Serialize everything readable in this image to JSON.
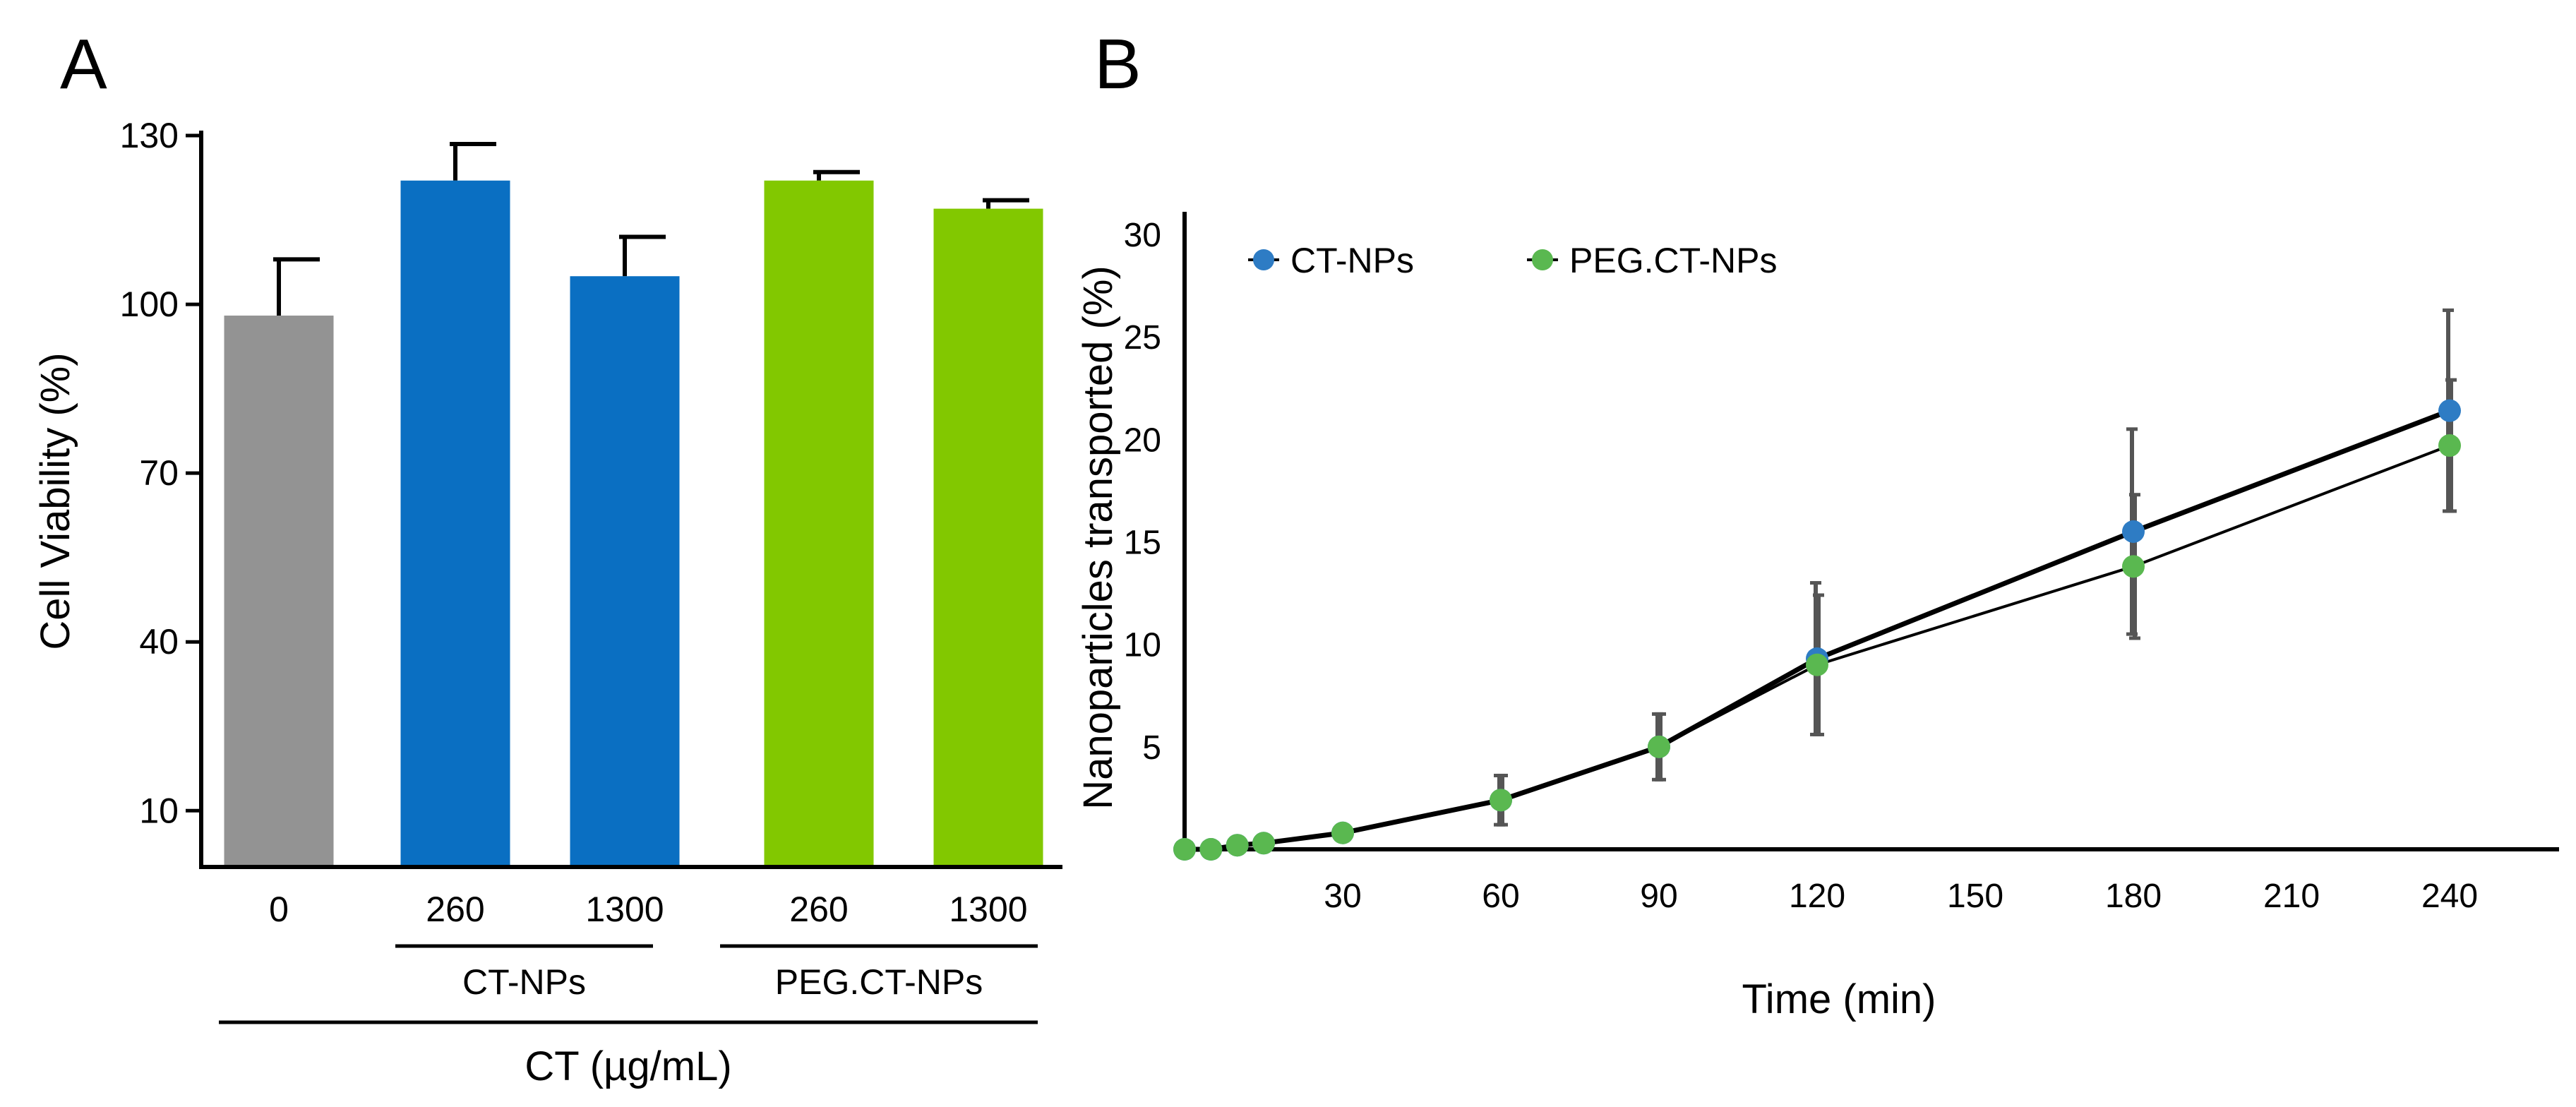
{
  "chart_data": [
    {
      "panel": "A",
      "type": "bar",
      "ylabel": "Cell Viability (%)",
      "xlabel": "CT (µg/mL)",
      "ylim": [
        0,
        130
      ],
      "yticks": [
        10,
        40,
        70,
        100,
        130
      ],
      "categories": [
        "0",
        "260",
        "1300",
        "260",
        "1300"
      ],
      "values": [
        98,
        122,
        105,
        122,
        117
      ],
      "errors": [
        10,
        6.5,
        7,
        1.5,
        1.5
      ],
      "colors": [
        "#939393",
        "#0a6fc2",
        "#0a6fc2",
        "#82c800",
        "#82c800"
      ],
      "groups": [
        {
          "label": "CT-NPs",
          "bars": [
            1,
            2
          ]
        },
        {
          "label": "PEG.CT-NPs",
          "bars": [
            3,
            4
          ]
        }
      ],
      "outer_group": {
        "label": "CT (µg/mL)",
        "bars": [
          0,
          1,
          2,
          3,
          4
        ]
      }
    },
    {
      "panel": "B",
      "type": "line",
      "xlabel": "Time (min)",
      "ylabel": "Nanoparticles transported (%)",
      "xlim": [
        0,
        255
      ],
      "ylim": [
        0,
        30
      ],
      "xticks": [
        30,
        60,
        90,
        120,
        150,
        180,
        210,
        240
      ],
      "yticks": [
        5,
        10,
        15,
        20,
        25,
        30
      ],
      "legend": "top-left",
      "series": [
        {
          "name": "CT-NPs",
          "color": "#2e7cc4",
          "x": [
            0,
            5,
            10,
            15,
            30,
            60,
            90,
            120,
            180,
            240
          ],
          "y": [
            0,
            0,
            0.2,
            0.3,
            0.8,
            2.4,
            5.0,
            9.3,
            15.5,
            21.4
          ],
          "err": [
            0,
            0,
            0,
            0,
            0,
            1.2,
            1.6,
            3.7,
            5.0,
            4.9
          ]
        },
        {
          "name": "PEG.CT-NPs",
          "color": "#5ab850",
          "x": [
            0,
            5,
            10,
            15,
            30,
            60,
            90,
            120,
            180,
            240
          ],
          "y": [
            0,
            0,
            0.2,
            0.3,
            0.8,
            2.4,
            5.0,
            9.0,
            13.8,
            19.7
          ],
          "err": [
            0,
            0,
            0,
            0,
            0,
            1.2,
            1.6,
            3.4,
            3.5,
            3.2
          ]
        }
      ]
    }
  ],
  "panels": {
    "a_label": "A",
    "b_label": "B"
  }
}
